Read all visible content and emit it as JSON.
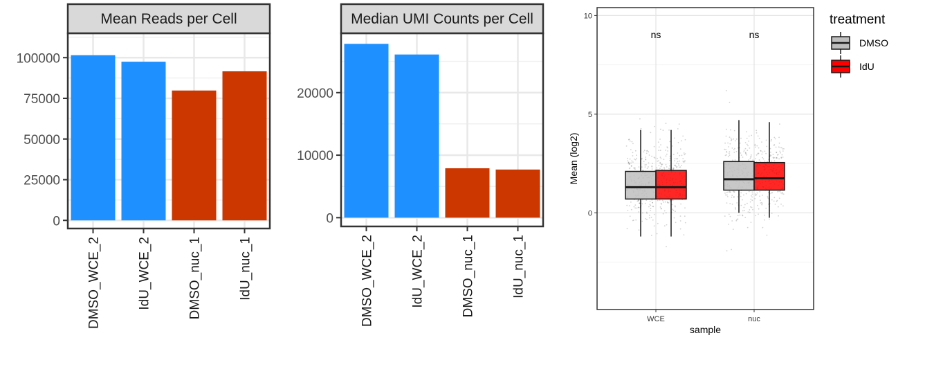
{
  "chart_data": [
    {
      "type": "bar",
      "title": "Mean Reads per Cell",
      "categories": [
        "DMSO_WCE_2",
        "IdU_WCE_2",
        "DMSO_nuc_1",
        "IdU_nuc_1"
      ],
      "values": [
        101500,
        97500,
        79800,
        91600
      ],
      "colors": [
        "#1E90FF",
        "#1E90FF",
        "#CC3700",
        "#CC3700"
      ],
      "yticks": [
        0,
        25000,
        50000,
        75000,
        100000
      ],
      "ylim": [
        -5000,
        115000
      ],
      "xlabel": "",
      "ylabel": "",
      "grid": true
    },
    {
      "type": "bar",
      "title": "Median UMI Counts per Cell",
      "categories": [
        "DMSO_WCE_2",
        "IdU_WCE_2",
        "DMSO_nuc_1",
        "IdU_nuc_1"
      ],
      "values": [
        27800,
        26100,
        7900,
        7700
      ],
      "colors": [
        "#1E90FF",
        "#1E90FF",
        "#CC3700",
        "#CC3700"
      ],
      "yticks": [
        0,
        10000,
        20000
      ],
      "ylim": [
        -1400,
        29500
      ],
      "xlabel": "",
      "ylabel": "",
      "grid": true
    },
    {
      "type": "box",
      "xlabel": "sample",
      "ylabel": "Mean (log2)",
      "categories": [
        "WCE",
        "nuc"
      ],
      "yticks": [
        0,
        5,
        10
      ],
      "ylim": [
        -4.9,
        10.4
      ],
      "grid": true,
      "legend": {
        "title": "treatment",
        "position": "right"
      },
      "series": [
        {
          "name": "DMSO",
          "color": "#BEBEBE",
          "boxes": [
            {
              "category": "WCE",
              "whisker_low": -1.2,
              "q1": 0.7,
              "median": 1.3,
              "q3": 2.1,
              "whisker_high": 4.2
            },
            {
              "category": "nuc",
              "whisker_low": 0.0,
              "q1": 1.15,
              "median": 1.7,
              "q3": 2.6,
              "whisker_high": 4.7
            }
          ]
        },
        {
          "name": "IdU",
          "color": "#FF0000",
          "boxes": [
            {
              "category": "WCE",
              "whisker_low": -1.2,
              "q1": 0.7,
              "median": 1.3,
              "q3": 2.15,
              "whisker_high": 4.2
            },
            {
              "category": "nuc",
              "whisker_low": -0.25,
              "q1": 1.15,
              "median": 1.75,
              "q3": 2.55,
              "whisker_high": 4.6
            }
          ]
        }
      ],
      "annotations": [
        {
          "category": "WCE",
          "text": "ns",
          "y": 9.0
        },
        {
          "category": "nuc",
          "text": "ns",
          "y": 9.0
        }
      ]
    }
  ]
}
